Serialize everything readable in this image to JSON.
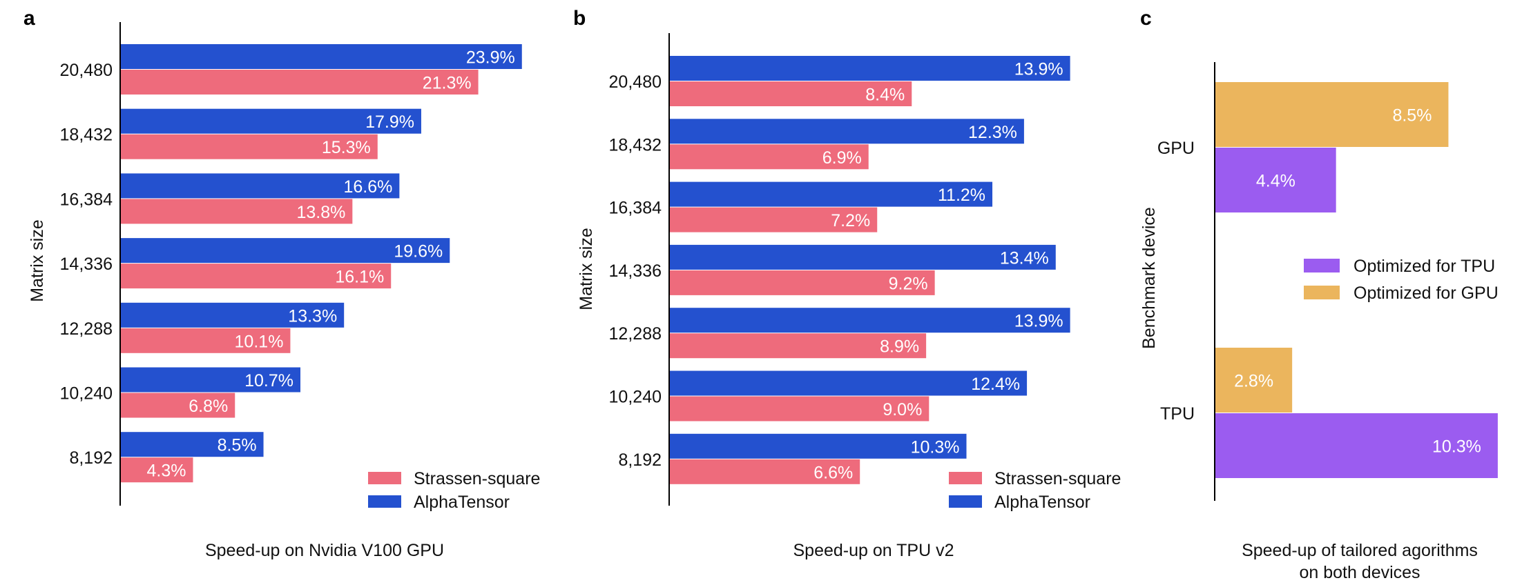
{
  "colors": {
    "strassen": "#ee6b7c",
    "alphatensor": "#2451cf",
    "opt_tpu": "#9b5cf0",
    "opt_gpu": "#ebb55d"
  },
  "chart_data": [
    {
      "type": "bar",
      "orientation": "horizontal",
      "panel": "a",
      "xlabel": "Speed-up on Nvidia V100 GPU",
      "ylabel": "Matrix size",
      "categories": [
        "20,480",
        "18,432",
        "16,384",
        "14,336",
        "12,288",
        "10,240",
        "8,192"
      ],
      "series": [
        {
          "name": "AlphaTensor",
          "values": [
            23.9,
            17.9,
            16.6,
            19.6,
            13.3,
            10.7,
            8.5
          ],
          "labels": [
            "23.9%",
            "17.9%",
            "16.6%",
            "19.6%",
            "13.3%",
            "10.7%",
            "8.5%"
          ]
        },
        {
          "name": "Strassen-square",
          "values": [
            21.3,
            15.3,
            13.8,
            16.1,
            10.1,
            6.8,
            4.3
          ],
          "labels": [
            "21.3%",
            "15.3%",
            "13.8%",
            "16.1%",
            "10.1%",
            "6.8%",
            "4.3%"
          ]
        }
      ],
      "legend": [
        "Strassen-square",
        "AlphaTensor"
      ],
      "legend_position": "bottom-right"
    },
    {
      "type": "bar",
      "orientation": "horizontal",
      "panel": "b",
      "xlabel": "Speed-up on TPU v2",
      "ylabel": "Matrix size",
      "categories": [
        "20,480",
        "18,432",
        "16,384",
        "14,336",
        "12,288",
        "10,240",
        "8,192"
      ],
      "series": [
        {
          "name": "AlphaTensor",
          "values": [
            13.9,
            12.3,
            11.2,
            13.4,
            13.9,
            12.4,
            10.3
          ],
          "labels": [
            "13.9%",
            "12.3%",
            "11.2%",
            "13.4%",
            "13.9%",
            "12.4%",
            "10.3%"
          ]
        },
        {
          "name": "Strassen-square",
          "values": [
            8.4,
            6.9,
            7.2,
            9.2,
            8.9,
            9.0,
            6.6
          ],
          "labels": [
            "8.4%",
            "6.9%",
            "7.2%",
            "9.2%",
            "8.9%",
            "9.0%",
            "6.6%"
          ]
        }
      ],
      "legend": [
        "Strassen-square",
        "AlphaTensor"
      ],
      "legend_position": "bottom-right"
    },
    {
      "type": "bar",
      "orientation": "horizontal",
      "panel": "c",
      "xlabel_lines": [
        "Speed-up of tailored agorithms",
        "on both devices"
      ],
      "ylabel": "Benchmark device",
      "categories": [
        "GPU",
        "TPU"
      ],
      "series": [
        {
          "name": "Optimized for GPU",
          "values": [
            8.5,
            2.8
          ],
          "labels": [
            "8.5%",
            "2.8%"
          ]
        },
        {
          "name": "Optimized for TPU",
          "values": [
            4.4,
            10.3
          ],
          "labels": [
            "4.4%",
            "10.3%"
          ]
        }
      ],
      "legend": [
        "Optimized for TPU",
        "Optimized for GPU"
      ],
      "legend_position": "center-right"
    }
  ]
}
